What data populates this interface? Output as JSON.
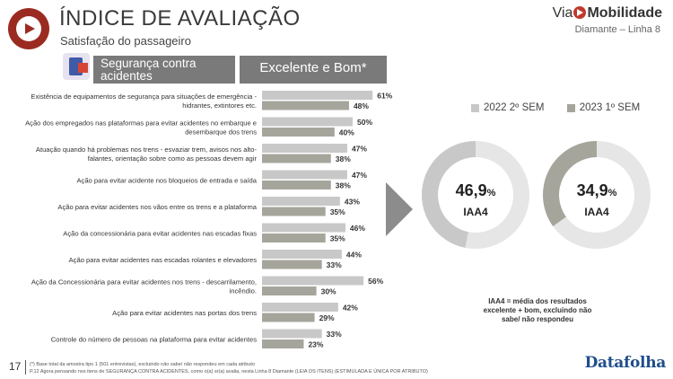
{
  "header": {
    "title": "ÍNDICE DE AVALIAÇÃO",
    "subtitle": "Satisfação do passageiro",
    "brand_prefix": "Via",
    "brand_name": "Mobilidade",
    "brand_line": "Diamante – Linha 8"
  },
  "category": {
    "icon": "safety-clipboard-icon",
    "label": "Segurança contra acidentes",
    "column_header": "Excelente e Bom*"
  },
  "colors": {
    "series_2022": "#c8c8c8",
    "series_2023": "#a6a59c",
    "banner": "#7a7a7a",
    "logo": "#9b2b21",
    "datafolha": "#1f4e8c"
  },
  "chart_data": [
    {
      "type": "bar",
      "orientation": "horizontal",
      "categories": [
        "Existência de equipamentos de segurança para situações de emergência - hidrantes, extintores etc.",
        "Ação dos empregados nas plataformas para evitar acidentes no embarque e desembarque dos trens",
        "Atuação quando há problemas nos trens - esvaziar trem, avisos nos alto-falantes, orientação sobre como as pessoas devem agir",
        "Ação para evitar acidente nos bloqueios de entrada e saída",
        "Ação para evitar acidentes nos vãos entre os trens e a plataforma",
        "Ação da concessionária para evitar acidentes nas escadas fixas",
        "Ação para evitar acidentes nas escadas rolantes e elevadores",
        "Ação da Concessionária para evitar acidentes nos trens - descarrilamento, incêndio.",
        "Ação para evitar acidentes nas portas dos trens",
        "Controle do número de pessoas na plataforma para evitar acidentes"
      ],
      "category_lines": [
        [
          "Existência de equipamentos de segurança para situações de emergência -",
          "hidrantes, extintores etc."
        ],
        [
          "Ação dos empregados nas plataformas para evitar acidentes no embarque e",
          "desembarque dos trens"
        ],
        [
          "Atuação quando há problemas nos trens - esvaziar trem, avisos nos alto-",
          "falantes, orientação sobre como as pessoas devem agir"
        ],
        [
          "Ação para evitar acidente nos bloqueios de entrada e saída"
        ],
        [
          "Ação para evitar acidentes nos vãos entre os trens e a plataforma"
        ],
        [
          "Ação da concessionária para evitar acidentes nas escadas fixas"
        ],
        [
          "Ação para evitar acidentes nas escadas rolantes e elevadores"
        ],
        [
          "Ação da Concessionária para evitar acidentes nos trens - descarrilamento,",
          "incêndio."
        ],
        [
          "Ação para evitar acidentes nas portas dos trens"
        ],
        [
          "Controle do número de pessoas na plataforma para evitar acidentes"
        ]
      ],
      "series": [
        {
          "name": "2022 2º SEM",
          "values": [
            61,
            50,
            47,
            47,
            43,
            46,
            44,
            56,
            42,
            33
          ],
          "labels": [
            "61%",
            "50%",
            "47%",
            "47%",
            "43%",
            "46%",
            "44%",
            "56%",
            "42%",
            "33%"
          ]
        },
        {
          "name": "2023 1º SEM",
          "values": [
            48,
            40,
            38,
            38,
            35,
            35,
            33,
            30,
            29,
            23
          ],
          "labels": [
            "48%",
            "40%",
            "38%",
            "38%",
            "35%",
            "35%",
            "33%",
            "30%",
            "29%",
            "23%"
          ]
        }
      ],
      "xlim": [
        0,
        100
      ],
      "unit": "%"
    },
    {
      "type": "pie",
      "style": "donut",
      "series": [
        {
          "name": "2022 2º SEM",
          "value": 46.9,
          "label_number": "46,9",
          "label_unit": "%",
          "label_sub": "IAA4"
        },
        {
          "name": "2023 1º SEM",
          "value": 34.9,
          "label_number": "34,9",
          "label_unit": "%",
          "label_sub": "IAA4"
        }
      ],
      "max": 100
    }
  ],
  "iaa_note": "IAA4 = média dos resultados excelente + bom, excluindo não sabe/ não respondeu",
  "footer": {
    "page_number": "17",
    "note_1": "(*) Base total da amostra tipo 1 (501 entrevistas), excluindo não sabe/ não respondeu em cada atributo",
    "note_2": "P.12 Agora pensando nos itens de SEGURANÇA CONTRA ACIDENTES, como o(a) sr(a) avalia, nesta Linha 8 Diamante (LEIA OS ITENS) (ESTIMULADA E ÚNICA POR ATRIBUTO)",
    "source_logo": "Datafolha"
  }
}
